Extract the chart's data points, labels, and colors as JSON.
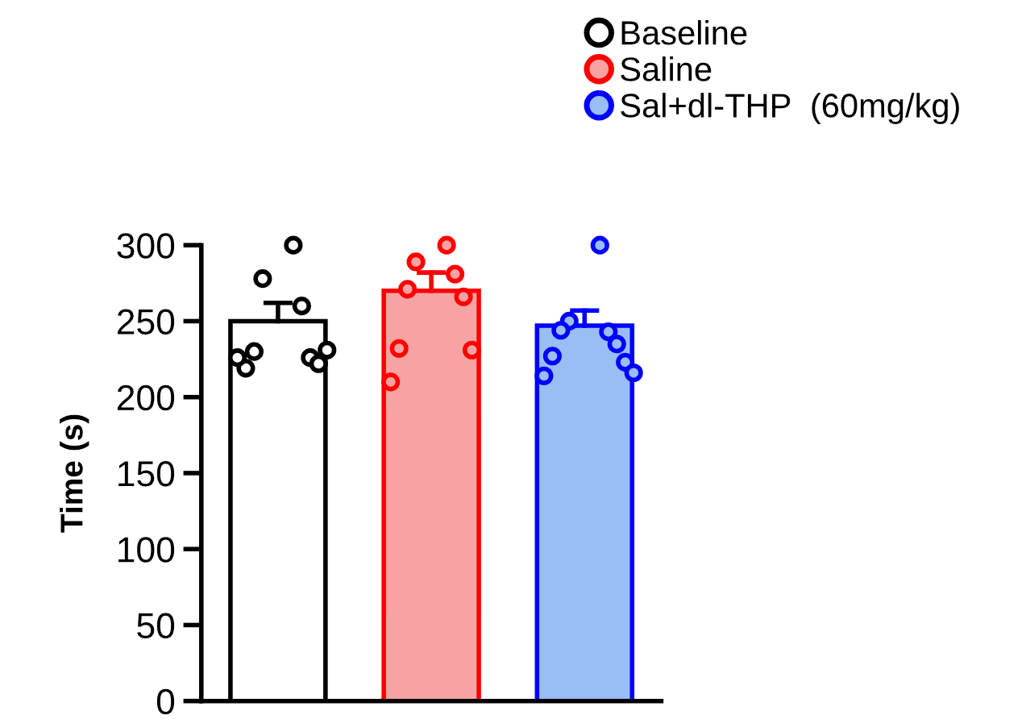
{
  "chart_data": {
    "type": "bar",
    "ylabel": "Time (s)",
    "categories": [
      null,
      null,
      null
    ],
    "ylim": [
      0,
      300
    ],
    "yticks": [
      0,
      50,
      100,
      150,
      200,
      250,
      300
    ],
    "grid": false,
    "legend": "top right",
    "tick_labels": "y",
    "series": [
      {
        "name": "Baseline",
        "color": "#ffffff",
        "values": [
          250,
          null,
          null
        ],
        "errors": [
          [
            250,
            262
          ],
          null,
          null
        ]
      },
      {
        "name": "Saline",
        "color": "#f7a3a3",
        "values": [
          null,
          270,
          null
        ],
        "errors": [
          null,
          [
            270,
            282
          ],
          null
        ]
      },
      {
        "name": "Sal+dl-THP  (60mg/kg)",
        "color": "#99bdf5",
        "values": [
          null,
          null,
          247
        ],
        "errors": [
          null,
          null,
          [
            247,
            257
          ]
        ]
      },
      {
        "type": "scatter",
        "colors": [
          "#000000",
          "#ff0000",
          "#0000ff"
        ],
        "values": [
          300,
          300,
          300
        ]
      },
      {
        "type": "scatter",
        "colors": [
          "#000000",
          "#ff0000",
          "#0000ff"
        ],
        "values": [
          278,
          289,
          250
        ]
      },
      {
        "type": "scatter",
        "colors": [
          "#000000",
          "#ff0000",
          "#0000ff"
        ],
        "values": [
          260,
          281,
          243
        ]
      },
      {
        "type": "scatter",
        "colors": [
          "#000000",
          "#ff0000",
          "#0000ff"
        ],
        "values": [
          230,
          271,
          244
        ]
      },
      {
        "type": "scatter",
        "colors": [
          "#000000",
          "#ff0000",
          "#0000ff"
        ],
        "values": [
          226,
          266,
          235
        ]
      },
      {
        "type": "scatter",
        "colors": [
          "#000000",
          "#ff0000",
          "#0000ff"
        ],
        "values": [
          219,
          232,
          227
        ]
      },
      {
        "type": "scatter",
        "colors": [
          "#000000",
          "#ff0000",
          "#0000ff"
        ],
        "values": [
          222,
          231,
          223
        ]
      },
      {
        "type": "scatter",
        "colors": [
          "#000000",
          "#ff0000",
          "#0000ff"
        ],
        "values": [
          226,
          210,
          214
        ]
      },
      {
        "type": "scatter",
        "colors": [
          "#000000",
          "#ff0000",
          "#0000ff"
        ],
        "values": [
          231,
          null,
          216
        ]
      }
    ]
  }
}
